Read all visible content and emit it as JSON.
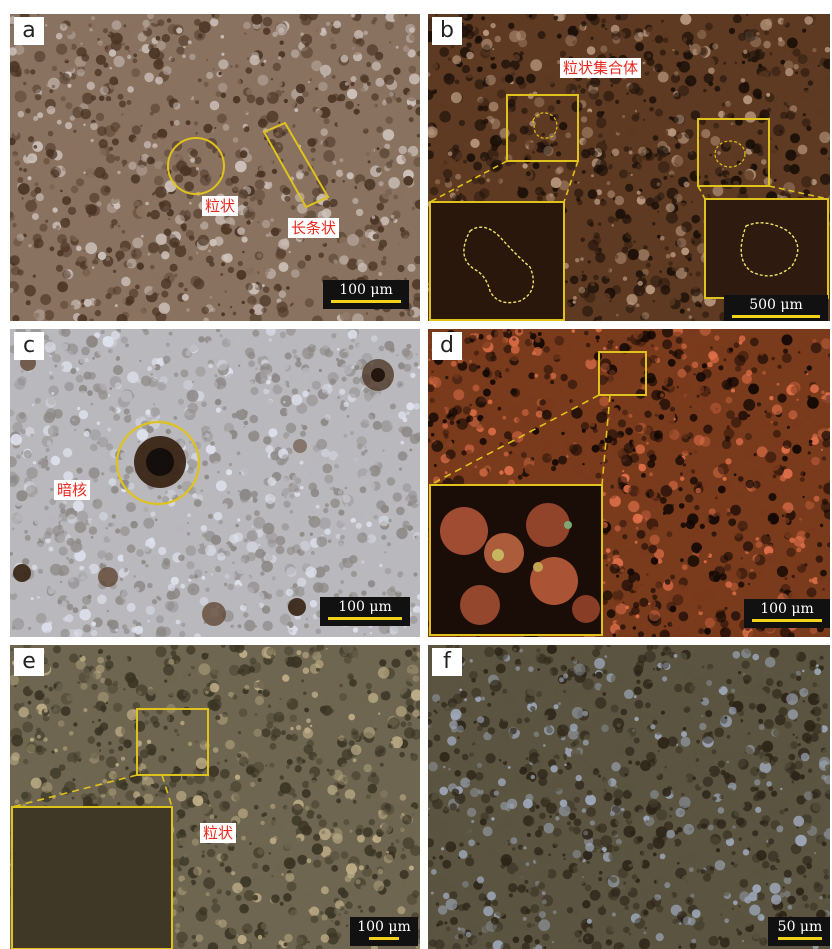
{
  "panels": {
    "a": {
      "letter": "a",
      "labels": [
        "粒状",
        "长条状"
      ],
      "scale": "100 μm",
      "colors": [
        "#4a3424",
        "#8a7260",
        "#cfc3bc"
      ]
    },
    "b": {
      "letter": "b",
      "labels": [
        "粒状集合体"
      ],
      "scale": "500 μm",
      "colors": [
        "#1a0f08",
        "#5e3a22",
        "#b99a80"
      ]
    },
    "c": {
      "letter": "c",
      "labels": [
        "暗核"
      ],
      "scale": "100 μm",
      "colors": [
        "#8c8885",
        "#b9b8bd",
        "#dfe3ee"
      ]
    },
    "d": {
      "letter": "d",
      "labels": [],
      "scale": "100 μm",
      "colors": [
        "#120804",
        "#7a3a1c",
        "#e0704a"
      ]
    },
    "e": {
      "letter": "e",
      "labels": [
        "粒状"
      ],
      "scale": "100 μm",
      "colors": [
        "#3a3424",
        "#6e6650",
        "#bfae88"
      ]
    },
    "f": {
      "letter": "f",
      "labels": [],
      "scale": "50 μm",
      "colors": [
        "#2c2418",
        "#5a5440",
        "#9ea8ba"
      ]
    }
  },
  "accent": "#e0c21c"
}
